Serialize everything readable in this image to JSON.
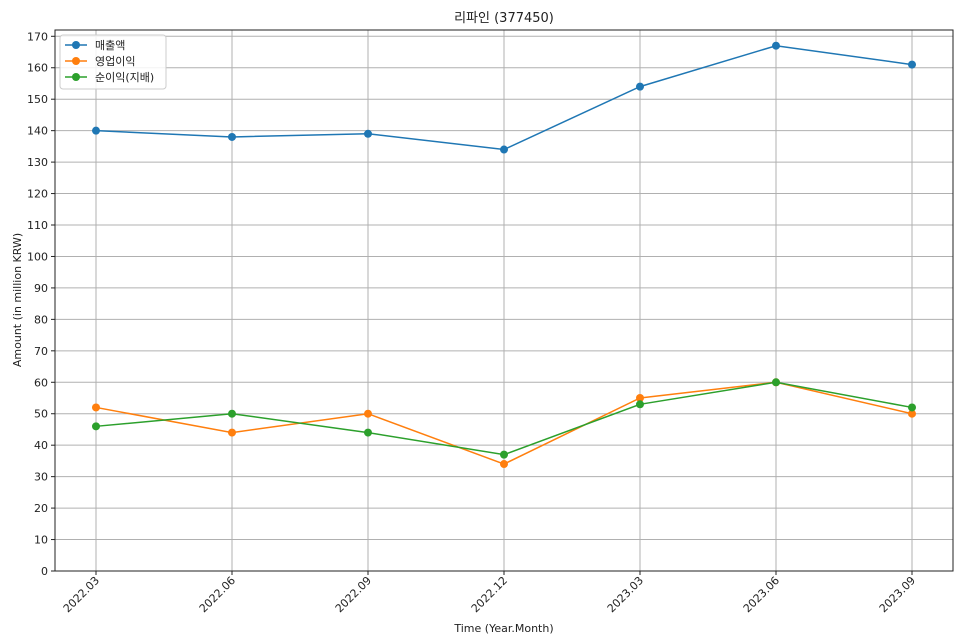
{
  "chart_data": {
    "type": "line",
    "title": "리파인 (377450)",
    "xlabel": "Time (Year.Month)",
    "ylabel": "Amount (in million KRW)",
    "categories": [
      "2022.03",
      "2022.06",
      "2022.09",
      "2022.12",
      "2023.03",
      "2023.06",
      "2023.09"
    ],
    "ylim": [
      0,
      172
    ],
    "yticks": [
      0,
      10,
      20,
      30,
      40,
      50,
      60,
      70,
      80,
      90,
      100,
      110,
      120,
      130,
      140,
      150,
      160,
      170
    ],
    "grid": true,
    "legend_position": "top-left",
    "series": [
      {
        "name": "매출액",
        "color": "#1f77b4",
        "values": [
          140,
          138,
          139,
          134,
          154,
          167,
          161
        ]
      },
      {
        "name": "영업이익",
        "color": "#ff7f0e",
        "values": [
          52,
          44,
          50,
          34,
          55,
          60,
          50
        ]
      },
      {
        "name": "순이익(지배)",
        "color": "#2ca02c",
        "values": [
          46,
          50,
          44,
          37,
          53,
          60,
          52
        ]
      }
    ]
  }
}
